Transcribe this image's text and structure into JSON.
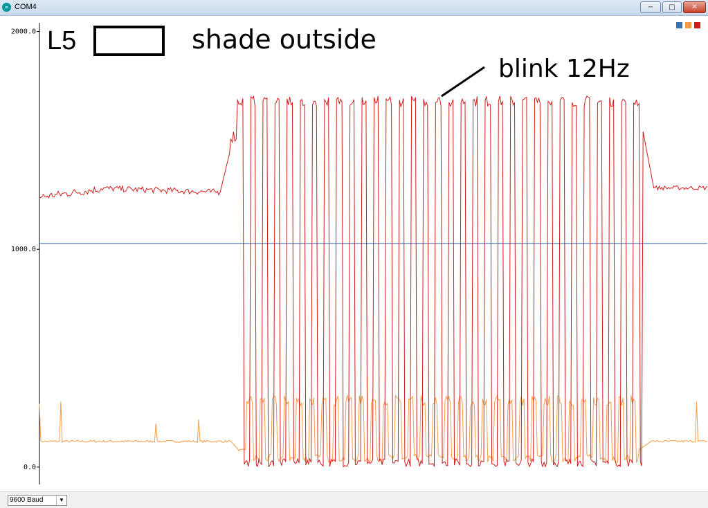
{
  "window": {
    "title": "COM4",
    "min_glyph": "−",
    "max_glyph": "□",
    "close_glyph": "✕"
  },
  "app_icon_glyph": "∞",
  "annotations": {
    "label": "L5",
    "caption": "shade outside",
    "note": "blink 12Hz"
  },
  "legend_colors": [
    "#3a74b5",
    "#f39c45",
    "#d11a1a"
  ],
  "baud": {
    "selected": "9600 Baud",
    "arrow": "▼"
  },
  "chart_data": {
    "type": "line",
    "ylim": [
      -80,
      2040
    ],
    "y_ticks": [
      "2000.0",
      "1000.0",
      "0.0"
    ],
    "y_tick_values": [
      2000,
      1000,
      0
    ],
    "x_count": 500,
    "series": [
      {
        "color": "#3a74b5",
        "segments": [
          {
            "type": "flat",
            "from": 0,
            "to": 500,
            "value": 1027
          }
        ]
      },
      {
        "color": "#f39c45",
        "segments": [
          {
            "type": "noisy",
            "from": 0,
            "to": 143,
            "base": 118,
            "amp": 5
          },
          {
            "type": "ramp",
            "from": 143,
            "to": 149,
            "v0": 118,
            "v1": 85
          },
          {
            "type": "noisy",
            "from": 149,
            "to": 155,
            "base": 78,
            "amp": 4
          },
          {
            "type": "square",
            "from": 155,
            "to": 448,
            "period": 9.25,
            "duty": 0.45,
            "high": 305,
            "low": 40
          },
          {
            "type": "ramp",
            "from": 448,
            "to": 458,
            "v0": 80,
            "v1": 118
          },
          {
            "type": "noisy",
            "from": 458,
            "to": 500,
            "base": 118,
            "amp": 5
          }
        ],
        "spikes": [
          {
            "i": 0,
            "v": 290
          },
          {
            "i": 16,
            "v": 300
          },
          {
            "i": 87,
            "v": 200
          },
          {
            "i": 119,
            "v": 220
          },
          {
            "i": 491,
            "v": 300
          }
        ]
      },
      {
        "color": "#d11a1a",
        "segments": [
          {
            "type": "noisy",
            "from": 0,
            "to": 46,
            "base": 1240,
            "amp": 18,
            "slope": 0.8
          },
          {
            "type": "noisy",
            "from": 46,
            "to": 135,
            "base": 1280,
            "amp": 14,
            "slope": -0.2
          },
          {
            "type": "ramp",
            "from": 135,
            "to": 143,
            "v0": 1262,
            "v1": 1440
          },
          {
            "type": "noisy",
            "from": 143,
            "to": 148,
            "base": 1520,
            "amp": 30
          },
          {
            "type": "square",
            "from": 148,
            "to": 451,
            "period": 9.25,
            "duty": 0.45,
            "high": 1680,
            "low": 20
          },
          {
            "type": "ramp",
            "from": 451,
            "to": 460,
            "v0": 1540,
            "v1": 1282
          },
          {
            "type": "noisy",
            "from": 460,
            "to": 500,
            "base": 1282,
            "amp": 10
          }
        ]
      }
    ]
  }
}
